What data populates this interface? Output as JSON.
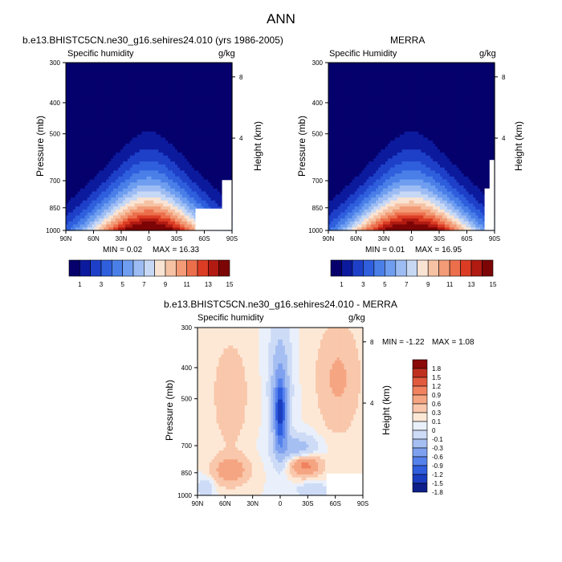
{
  "figure_title": "ANN",
  "palettes": {
    "abs": [
      "#05006c",
      "#0c1a9d",
      "#1e40c8",
      "#2f5fdc",
      "#4a7fe8",
      "#6f9ef0",
      "#9cbcf3",
      "#c7d8f5",
      "#f9e3d3",
      "#f6c2a4",
      "#f29b76",
      "#ec6f4c",
      "#dc3c24",
      "#b11b12",
      "#7c0506"
    ],
    "diff": [
      "#0c1f8a",
      "#1a3cbf",
      "#2f5dde",
      "#5581ec",
      "#7ea0ef",
      "#a6bff2",
      "#cddbf6",
      "#e9f0fb",
      "#fde8d6",
      "#f9c7ab",
      "#f5a582",
      "#f08260",
      "#e25a3d",
      "#c0301f",
      "#8a0a0a"
    ]
  },
  "chart_data": [
    {
      "type": "heatmap",
      "panel_title": "b.e13.BHISTC5CN.ne30_g16.sehires24.010 (yrs 1986-2005)",
      "variable": "Specific humidity",
      "units": "g/kg",
      "ylabel": "Pressure (mb)",
      "ylabel_right": "Height (km)",
      "x_ticks": [
        "90N",
        "60N",
        "30N",
        "0",
        "30S",
        "60S",
        "90S"
      ],
      "y_ticks": [
        300,
        400,
        500,
        700,
        850,
        1000
      ],
      "height_ticks": [
        8,
        4
      ],
      "min_label": "MIN =  0.02",
      "max_label": "MAX =  16.33",
      "min": 0.02,
      "max": 16.33,
      "colorbar_labels": [
        "1",
        "3",
        "5",
        "7",
        "9",
        "11",
        "13",
        "15"
      ]
    },
    {
      "type": "heatmap",
      "panel_title": "MERRA",
      "variable": "Specific Humidity",
      "units": "g/kg",
      "ylabel": "Pressure (mb)",
      "ylabel_right": "Height (km)",
      "x_ticks": [
        "90N",
        "60N",
        "30N",
        "0",
        "30S",
        "60S",
        "90S"
      ],
      "y_ticks": [
        300,
        400,
        500,
        700,
        850,
        1000
      ],
      "height_ticks": [
        8,
        4
      ],
      "min_label": "MIN =  0.01",
      "max_label": "MAX =  16.95",
      "min": 0.01,
      "max": 16.95,
      "colorbar_labels": [
        "1",
        "3",
        "5",
        "7",
        "9",
        "11",
        "13",
        "15"
      ]
    },
    {
      "type": "heatmap",
      "panel_title": "b.e13.BHISTC5CN.ne30_g16.sehires24.010 - MERRA",
      "variable": "Specific humidity",
      "units": "g/kg",
      "ylabel": "Pressure (mb)",
      "ylabel_right": "Height (km)",
      "x_ticks": [
        "90N",
        "60N",
        "30N",
        "0",
        "30S",
        "60S",
        "90S"
      ],
      "y_ticks": [
        300,
        400,
        500,
        700,
        850,
        1000
      ],
      "height_ticks": [
        8,
        4
      ],
      "min_label": "MIN =  -1.22",
      "max_label": "MAX =   1.08",
      "min": -1.22,
      "max": 1.08,
      "colorbar_labels": [
        "1.8",
        "1.5",
        "1.2",
        "0.9",
        "0.6",
        "0.3",
        "0.1",
        "0",
        "-0.1",
        "-0.3",
        "-0.6",
        "-0.9",
        "-1.2",
        "-1.5",
        "-1.8"
      ]
    }
  ]
}
